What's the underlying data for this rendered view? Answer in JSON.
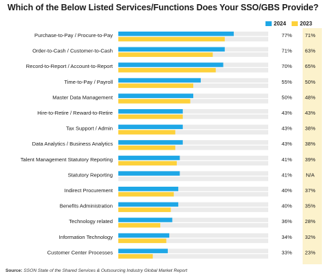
{
  "chart_data": {
    "type": "bar",
    "orientation": "horizontal",
    "title": "Which of the Below Listed Services/Functions Does Your SSO/GBS Provide?",
    "categories": [
      "Purchase-to-Pay / Procure-to-Pay",
      "Order-to-Cash / Customer-to-Cash",
      "Record-to-Report / Account-to-Report",
      "Time-to-Pay / Payroll",
      "Master Data Management",
      "Hire-to-Retire / Reward-to-Retire",
      "Tax Support / Admin",
      "Data Analytics / Business Analytics",
      "Talent Management Statutory Reporting",
      "Statutory Reporting",
      "Indirect Procurement",
      "Benefits Administration",
      "Technology related",
      "Information Technology",
      "Customer Center Processes"
    ],
    "series": [
      {
        "name": "2024",
        "color": "#1ea7e6",
        "values": [
          77,
          71,
          70,
          55,
          50,
          43,
          43,
          43,
          41,
          41,
          40,
          40,
          36,
          34,
          33
        ],
        "labels": [
          "77%",
          "71%",
          "70%",
          "55%",
          "50%",
          "43%",
          "43%",
          "43%",
          "41%",
          "41%",
          "40%",
          "40%",
          "36%",
          "34%",
          "33%"
        ]
      },
      {
        "name": "2023",
        "color": "#fdd13b",
        "values": [
          71,
          63,
          65,
          50,
          48,
          43,
          38,
          38,
          39,
          null,
          37,
          35,
          28,
          32,
          23
        ],
        "labels": [
          "71%",
          "63%",
          "65%",
          "50%",
          "48%",
          "43%",
          "38%",
          "38%",
          "39%",
          "N/A",
          "37%",
          "35%",
          "28%",
          "32%",
          "23%"
        ]
      }
    ],
    "xlim": [
      0,
      100
    ],
    "track_color": "#ebebeb",
    "highlight_color": "#fcf2cc",
    "grid": false,
    "legend": "top-right"
  },
  "source": {
    "label": "Source:",
    "text": "SSON State of the Shared Services & Outsourcing Industry Global Market Report"
  }
}
